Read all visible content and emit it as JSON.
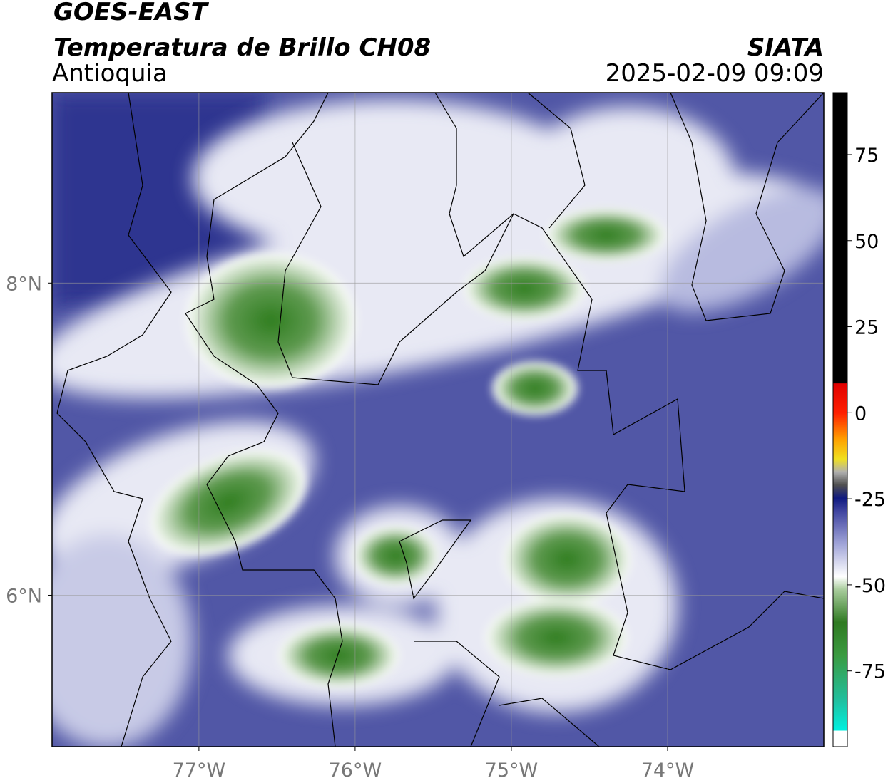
{
  "header": {
    "satellite": "GOES-EAST",
    "product": "Temperatura de Brillo CH08",
    "region": "Antioquia",
    "source": "SIATA",
    "datetime": "2025-02-09 09:09"
  },
  "map": {
    "xlim": [
      -77.94,
      -73.0
    ],
    "ylim": [
      5.03,
      9.22
    ],
    "xticks": [
      {
        "value": -77,
        "label": "77°W"
      },
      {
        "value": -76,
        "label": "76°W"
      },
      {
        "value": -75,
        "label": "75°W"
      },
      {
        "value": -74,
        "label": "74°W"
      }
    ],
    "yticks": [
      {
        "value": 8,
        "label": "8°N"
      },
      {
        "value": 6,
        "label": "6°N"
      }
    ],
    "grid": true
  },
  "colorbar": {
    "lim": [
      -97,
      93
    ],
    "ticks": [
      75,
      50,
      25,
      0,
      -25,
      -50,
      -75
    ]
  }
}
